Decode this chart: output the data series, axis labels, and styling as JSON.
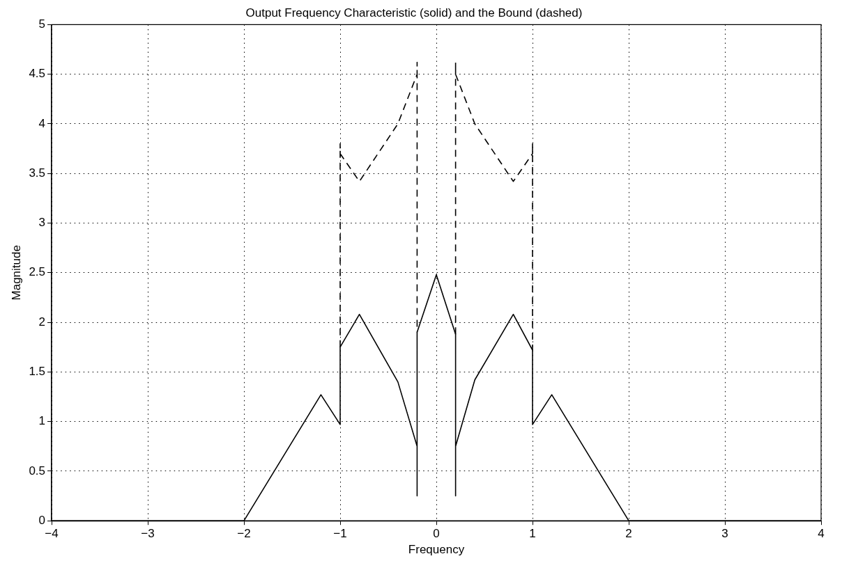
{
  "chart_data": {
    "type": "line",
    "title": "Output Frequency Characteristic (solid) and the Bound (dashed)",
    "xlabel": "Frequency",
    "ylabel": "Magnitude",
    "xlim": [
      -4,
      4
    ],
    "xticks": [
      -4,
      -3,
      -2,
      -1,
      0,
      1,
      2,
      3,
      4
    ],
    "ylim": [
      0,
      5
    ],
    "yticks": [
      0,
      0.5,
      1,
      1.5,
      2,
      2.5,
      3,
      3.5,
      4,
      4.5,
      5
    ],
    "grid": true,
    "legend": false,
    "marker": "none",
    "series": [
      {
        "color": "#000000",
        "line_style": "solid",
        "x": [
          -4,
          -2,
          -1.2,
          -1,
          -1,
          -0.8,
          -0.4,
          -0.2,
          -0.2,
          -0.2,
          0,
          0.2,
          0.2,
          0.2,
          0.4,
          0.8,
          1,
          1,
          1.2,
          2,
          4
        ],
        "values": [
          0,
          0,
          1.27,
          0.97,
          1.75,
          2.08,
          1.4,
          0.75,
          0.25,
          1.9,
          2.48,
          1.88,
          0.25,
          0.75,
          1.42,
          2.08,
          1.72,
          0.97,
          1.27,
          0,
          0
        ]
      },
      {
        "color": "#000000",
        "line_style": "dashed",
        "x": [
          -1,
          -1,
          -1,
          -0.8,
          -0.4,
          -0.2,
          -0.2,
          -0.2,
          0,
          0.2,
          0.2,
          0.2,
          0.4,
          0.8,
          1,
          1,
          1
        ],
        "values": [
          1.75,
          3.8,
          3.7,
          3.42,
          4.0,
          4.5,
          4.62,
          1.9,
          null,
          1.88,
          4.62,
          4.5,
          4.0,
          3.42,
          3.7,
          3.8,
          1.72
        ]
      }
    ]
  }
}
